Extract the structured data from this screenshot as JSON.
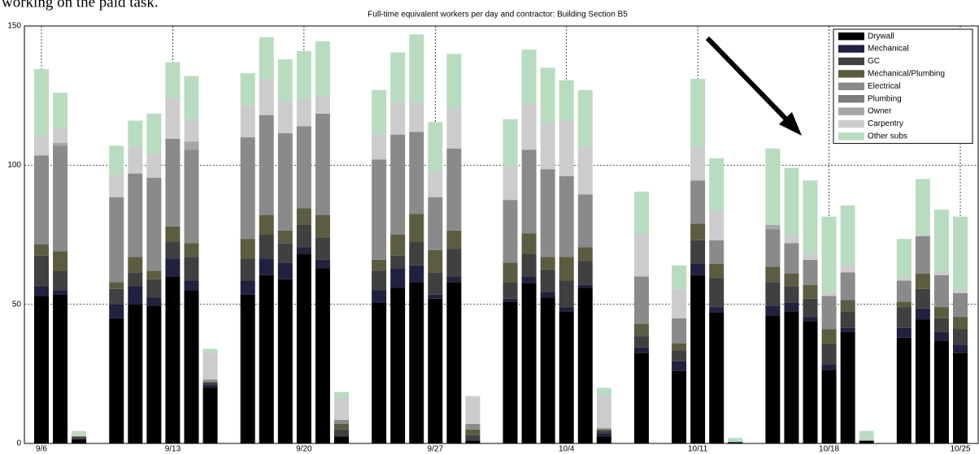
{
  "caption": "working on the paid task.",
  "chart_data": {
    "type": "stacked_bar",
    "title": "Full-time equivalent workers per day and contractor: Building Section B5",
    "categories": [
      "9/6",
      null,
      null,
      null,
      null,
      null,
      null,
      "9/13",
      null,
      null,
      null,
      null,
      null,
      null,
      "9/20",
      null,
      null,
      null,
      null,
      null,
      null,
      "9/27",
      null,
      null,
      null,
      null,
      null,
      null,
      "10/4",
      null,
      null,
      null,
      null,
      null,
      null,
      "10/11",
      null,
      null,
      null,
      null,
      null,
      null,
      "10/18",
      null,
      null,
      null,
      null,
      null,
      null,
      "10/25"
    ],
    "ylim": [
      0,
      150
    ],
    "yticks": [
      0,
      50,
      100,
      150
    ],
    "grid": true,
    "legend": "upper right",
    "series": [
      {
        "name": "Drywall",
        "color": "#000000",
        "values": [
          53,
          53.5,
          1.5,
          null,
          45,
          50,
          49.5,
          60,
          55,
          20,
          null,
          53.5,
          60.5,
          59,
          68,
          63,
          2.5,
          null,
          50.5,
          56,
          58,
          52,
          58,
          1,
          null,
          51,
          57.5,
          52.5,
          47.5,
          56,
          2.5,
          null,
          32.5,
          null,
          26,
          60.5,
          47,
          0.5,
          null,
          46,
          47.5,
          44,
          26.5,
          40,
          1,
          null,
          38,
          44.5,
          37,
          32.5
        ]
      },
      {
        "name": "Mechanical",
        "color": "#20203f",
        "values": [
          3.5,
          1.5,
          0,
          null,
          5,
          6.5,
          3,
          6.5,
          3.5,
          1,
          null,
          5,
          6,
          6,
          2.5,
          3,
          0,
          null,
          4.5,
          7,
          6,
          1.5,
          2,
          0,
          null,
          1,
          2.5,
          2,
          1.5,
          1,
          1,
          null,
          2,
          null,
          3.5,
          4,
          2,
          0,
          null,
          3.5,
          3,
          1.5,
          2,
          1.5,
          0,
          null,
          3.5,
          4,
          3,
          3
        ]
      },
      {
        "name": "GC",
        "color": "#404040",
        "values": [
          11,
          7,
          1,
          null,
          5.5,
          5,
          6.5,
          6,
          8.5,
          1,
          null,
          8,
          8.5,
          7,
          8,
          8,
          2.5,
          null,
          7,
          4.5,
          8.5,
          8,
          10,
          2,
          null,
          6,
          8,
          8,
          9.5,
          8.5,
          1,
          null,
          4,
          null,
          4,
          8.5,
          10.5,
          0,
          null,
          8.5,
          6,
          6.5,
          7.5,
          6,
          0,
          null,
          7.5,
          7,
          5,
          5.5
        ]
      },
      {
        "name": "Mechanical/Plumbing",
        "color": "#5c5c40",
        "values": [
          4,
          7,
          0,
          null,
          2.5,
          5.5,
          3,
          5.5,
          5,
          0,
          null,
          7,
          7,
          4.5,
          6,
          8,
          2,
          null,
          4,
          7.5,
          10,
          8,
          6.5,
          2,
          null,
          7,
          7.5,
          4.5,
          8.5,
          5,
          0.5,
          null,
          4.5,
          null,
          2.5,
          6,
          5,
          0,
          null,
          5.5,
          4.5,
          5,
          5,
          4,
          0,
          null,
          2,
          5.5,
          4,
          4.5
        ]
      },
      {
        "name": "Electrical",
        "color": "#8a8a8a",
        "values": [
          32,
          38,
          0,
          null,
          30.5,
          30,
          33.5,
          31.5,
          33.5,
          1,
          null,
          36.5,
          36,
          35,
          29.5,
          36.5,
          1.5,
          null,
          36,
          36,
          29.5,
          19,
          29.5,
          2,
          null,
          22.5,
          30,
          31.5,
          29,
          19,
          0.5,
          null,
          17,
          null,
          9,
          15.5,
          8.5,
          0,
          null,
          13.5,
          11,
          9,
          12,
          10,
          0,
          null,
          7.5,
          13.5,
          11.5,
          8.5
        ]
      },
      {
        "name": "Plumbing",
        "color": "#7d7d7d",
        "values": [
          0,
          0,
          0,
          null,
          0,
          0,
          0,
          0,
          0,
          0,
          null,
          0,
          0,
          0,
          0,
          0,
          0,
          null,
          0,
          0,
          0,
          0,
          0,
          0,
          null,
          0,
          0,
          0,
          0,
          0,
          0,
          null,
          0,
          null,
          0,
          0,
          0,
          0,
          null,
          0,
          0,
          0,
          0,
          0,
          0,
          null,
          0,
          0,
          0,
          0
        ]
      },
      {
        "name": "Owner",
        "color": "#a6a6a6",
        "values": [
          0,
          1,
          0,
          null,
          0,
          0,
          0,
          0,
          3,
          0,
          null,
          0,
          0,
          0,
          0,
          0,
          0,
          null,
          0,
          0,
          0,
          0,
          0,
          0,
          null,
          0,
          0,
          0,
          0,
          0,
          0,
          null,
          0,
          null,
          0,
          0,
          0,
          0,
          null,
          1.5,
          0,
          0,
          0,
          0,
          0,
          null,
          0,
          0,
          0,
          0
        ]
      },
      {
        "name": "Carpentry",
        "color": "#cccccc",
        "values": [
          7,
          5.5,
          0.5,
          null,
          8,
          9.5,
          8.5,
          14.5,
          8,
          9.5,
          null,
          11.5,
          13,
          11.5,
          9.5,
          6.5,
          8,
          null,
          9,
          11.5,
          10.5,
          9,
          14.5,
          10,
          null,
          12,
          16.5,
          16.5,
          20,
          17,
          12,
          null,
          15,
          null,
          10.5,
          12,
          10.5,
          0,
          null,
          0,
          3,
          2,
          1.5,
          2.5,
          0.5,
          null,
          1,
          0.5,
          1.5,
          1
        ]
      },
      {
        "name": "Other subs",
        "color": "#b8dcbf",
        "values": [
          24,
          12.5,
          1.5,
          null,
          10.5,
          9.5,
          14.5,
          13,
          15.5,
          1.5,
          null,
          11.5,
          15,
          15,
          17.5,
          19.5,
          2,
          null,
          16,
          18,
          24.5,
          18,
          19.5,
          0,
          null,
          17,
          19.5,
          20,
          14.5,
          20.5,
          2.5,
          null,
          15.5,
          null,
          8.5,
          24.5,
          19,
          1.5,
          null,
          27.5,
          24,
          26.5,
          27,
          21.5,
          3,
          null,
          14,
          20,
          22,
          26.5
        ]
      }
    ]
  }
}
